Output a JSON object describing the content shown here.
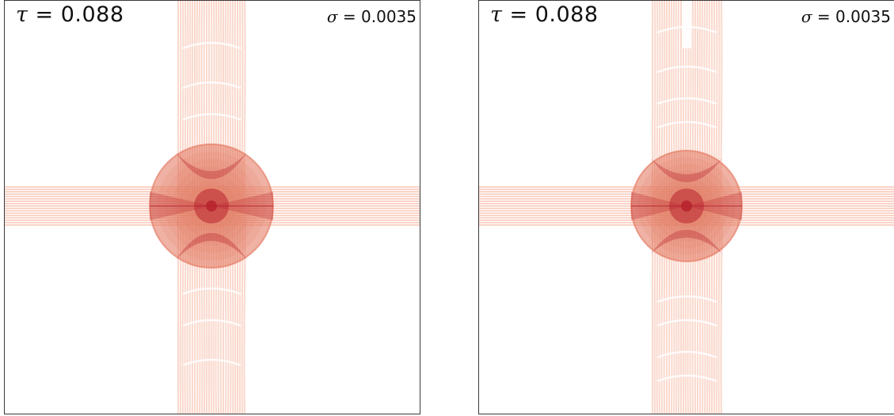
{
  "panels": [
    {
      "tau_symbol": "τ",
      "tau_value": "= 0.088",
      "sigma_symbol": "σ",
      "sigma_value": "= 0.0035",
      "variant": "left"
    },
    {
      "tau_symbol": "τ",
      "tau_value": "= 0.088",
      "sigma_symbol": "σ",
      "sigma_value": "= 0.0035",
      "variant": "right"
    }
  ],
  "colors": {
    "light": "#f6b8a3",
    "mid": "#e2735a",
    "dark": "#b8232e",
    "frame": "#3a3a3a"
  }
}
